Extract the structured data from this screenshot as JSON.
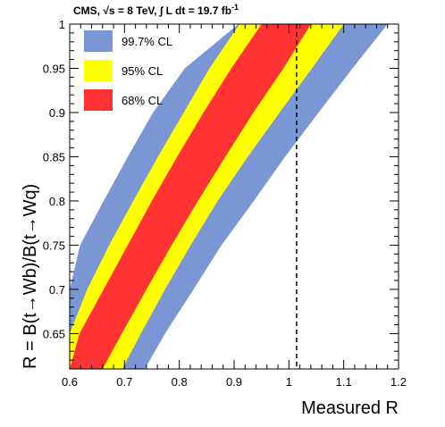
{
  "header": {
    "text": "CMS,  √s = 8 TeV,  ∫ L dt = 19.7 fb",
    "superscript": "-1"
  },
  "chart_data": {
    "type": "area",
    "xlabel": "Measured R",
    "ylabel": "R = B(t→Wb)/B(t→Wq)",
    "xlim": [
      0.6,
      1.2
    ],
    "ylim": [
      0.61,
      1.0
    ],
    "x_ticks": [
      "0.6",
      "0.7",
      "0.8",
      "0.9",
      "1",
      "1.1",
      "1.2"
    ],
    "y_ticks": [
      "0.65",
      "0.7",
      "0.75",
      "0.8",
      "0.85",
      "0.9",
      "0.95",
      "1"
    ],
    "x_tick_values": [
      0.6,
      0.7,
      0.8,
      0.9,
      1.0,
      1.1,
      1.2
    ],
    "y_tick_values": [
      0.65,
      0.7,
      0.75,
      0.8,
      0.85,
      0.9,
      0.95,
      1.0
    ],
    "measured_line_x": 1.014,
    "legend_position": "top-left",
    "colors": {
      "cl997": "#7a96d4",
      "cl95": "#ffff00",
      "cl68": "#ff3333"
    },
    "bands": [
      {
        "name": "99.7% CL",
        "color": "#7a96d4",
        "true_r": [
          0.61,
          0.65,
          0.7,
          0.75,
          0.8,
          0.85,
          0.9,
          0.95,
          1.0
        ],
        "lower": [
          0.6,
          0.6,
          0.6,
          0.619,
          0.662,
          0.706,
          0.752,
          0.81,
          0.908
        ],
        "upper": [
          0.737,
          0.774,
          0.826,
          0.877,
          0.936,
          0.993,
          1.054,
          1.116,
          1.18
        ]
      },
      {
        "name": "95% CL",
        "color": "#ffff00",
        "true_r": [
          0.61,
          0.65,
          0.7,
          0.75,
          0.8,
          0.85,
          0.9,
          0.95,
          1.0
        ],
        "lower": [
          0.6,
          0.6,
          0.632,
          0.672,
          0.716,
          0.761,
          0.808,
          0.855,
          0.91
        ],
        "upper": [
          0.696,
          0.73,
          0.774,
          0.821,
          0.87,
          0.925,
          0.983,
          1.042,
          1.1
        ]
      },
      {
        "name": "68% CL",
        "color": "#ff3333",
        "true_r": [
          0.61,
          0.65,
          0.7,
          0.75,
          0.8,
          0.85,
          0.9,
          0.95,
          1.0
        ],
        "lower": [
          0.6,
          0.618,
          0.662,
          0.706,
          0.75,
          0.796,
          0.844,
          0.895,
          0.95
        ],
        "upper": [
          0.66,
          0.695,
          0.74,
          0.786,
          0.834,
          0.884,
          0.935,
          0.99,
          1.04
        ]
      }
    ]
  }
}
